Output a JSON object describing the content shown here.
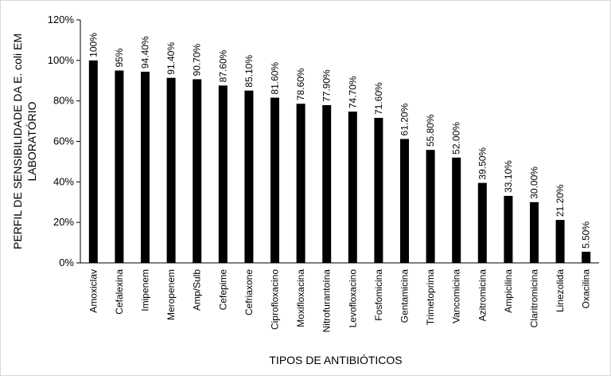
{
  "chart_data": {
    "type": "bar",
    "title": "",
    "xlabel": "TIPOS DE ANTIBIÓTICOS",
    "ylabel_lines": [
      "PERFIL DE SENSIBILIDADE DA E. coli EM",
      "LABORATÓRIO"
    ],
    "ylim": [
      0,
      120
    ],
    "yticks": [
      0,
      20,
      40,
      60,
      80,
      100,
      120
    ],
    "ytick_labels": [
      "0%",
      "20%",
      "40%",
      "60%",
      "80%",
      "100%",
      "120%"
    ],
    "grid": false,
    "legend": "none",
    "bar_color": "#000000",
    "categories": [
      "Amoxiclav",
      "Cefalexina",
      "Imipenem",
      "Meropenem",
      "Amp/Sulb",
      "Cefepime",
      "Cefriaxone",
      "Ciprofloxacino",
      "Moxifloxacina",
      "Nitrofurantoína",
      "Levofloxacino",
      "Fosfomicina",
      "Gentamicina",
      "Trimetoprima",
      "Vancomicina",
      "Azitromicina",
      "Ampicilina",
      "Claritromicina",
      "Linezolida",
      "Oxacilina"
    ],
    "values": [
      100,
      95,
      94.4,
      91.4,
      90.7,
      87.6,
      85.1,
      81.6,
      78.6,
      77.9,
      74.7,
      71.6,
      61.2,
      55.8,
      52.0,
      39.5,
      33.1,
      30.0,
      21.2,
      5.5
    ],
    "data_labels": [
      "100%",
      "95%",
      "94.40%",
      "91.40%",
      "90.70%",
      "87.60%",
      "85.10%",
      "81.60%",
      "78.60%",
      "77.90%",
      "74.70%",
      "71.60%",
      "61.20%",
      "55.80%",
      "52.00%",
      "39.50%",
      "33.10%",
      "30.00%",
      "21.20%",
      "5.50%"
    ]
  }
}
